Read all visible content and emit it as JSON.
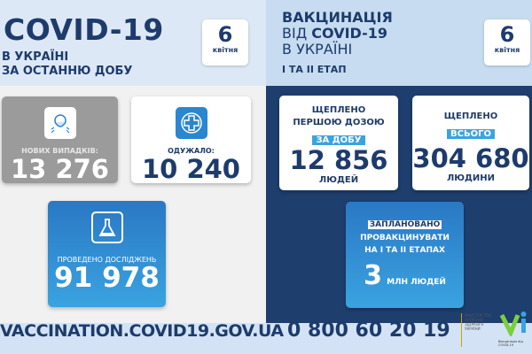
{
  "left": {
    "title": "COVID-19",
    "subtitle_line1": "В УКРАЇНІ",
    "subtitle_line2": "ЗА ОСТАННЮ ДОБУ",
    "date_day": "6",
    "date_month": "квітня",
    "cases": {
      "label": "НОВИХ ВИПАДКІВ:",
      "value": "13 276",
      "icon": "person-mask-icon"
    },
    "recovered": {
      "label": "ОДУЖАЛО:",
      "value": "10 240",
      "icon": "medical-cross-icon"
    },
    "tests": {
      "label": "ПРОВЕДЕНО ДОСЛІДЖЕНЬ",
      "value": "91 978",
      "icon": "flask-icon"
    }
  },
  "right": {
    "title_line1": "ВАКЦИНАЦІЯ",
    "title_line2_prefix": "ВІД ",
    "title_line2_bold": "COVID-19",
    "title_line3": "В УКРАЇНІ",
    "stage": "І ТА ІІ ЕТАП",
    "date_day": "6",
    "date_month": "квітня",
    "daily": {
      "line1": "ЩЕПЛЕНО",
      "line2": "ПЕРШОЮ ДОЗОЮ",
      "highlight": "ЗА ДОБУ",
      "value": "12 856",
      "unit": "ЛЮДЕЙ"
    },
    "total": {
      "line1": "ЩЕПЛЕНО",
      "highlight": "ВСЬОГО",
      "value": "304 680",
      "unit": "ЛЮДИНИ"
    },
    "planned": {
      "highlight": "ЗАПЛАНОВАНО",
      "line2": "ПРОВАКЦИНУВАТИ",
      "line3": "НА І ТА ІІ ЕТАПАХ",
      "value": "3",
      "unit": "МЛН ЛЮДЕЙ"
    }
  },
  "footer": {
    "url": "VACCINATION.COVID19.GOV.UA",
    "phone": "0 800 60 20 19",
    "ministry": "МІНІСТЕРСТВО ОХОРОНИ ЗДОРОВ'Я УКРАЇНИ",
    "vacc_logo": "Вакцинація від COVID-19"
  },
  "colors": {
    "navy": "#1e3e6e",
    "accent": "#3aa3e0",
    "gray_card": "#9b9b9b",
    "blue_card": "#2a86cf"
  }
}
